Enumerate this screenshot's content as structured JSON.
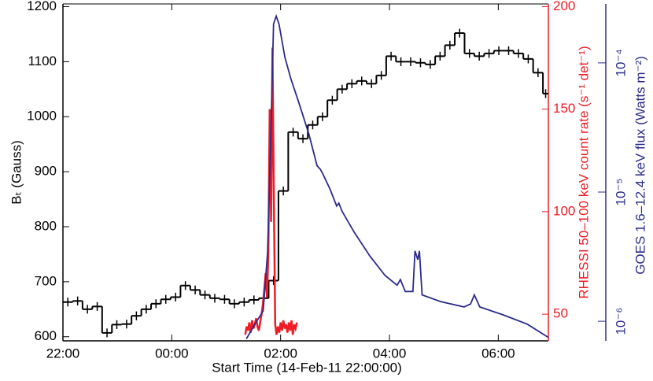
{
  "chart_data": {
    "type": "line",
    "xlabel": "Start Time (14-Feb-11 22:00:00)",
    "ylabel": "Bₜ (Gauss)",
    "y2label": "RHESSI 50–100 keV count rate (s⁻¹ det⁻¹)",
    "y3label": "GOES 1.6–12.4 keV flux (Watts m⁻²)",
    "xlim": [
      0,
      8.92
    ],
    "xticks": [
      {
        "value": 0,
        "label": "22:00"
      },
      {
        "value": 2,
        "label": "00:00"
      },
      {
        "value": 4,
        "label": "02:00"
      },
      {
        "value": 6,
        "label": "04:00"
      },
      {
        "value": 8,
        "label": "06:00"
      }
    ],
    "ylim": [
      592.5,
      1205
    ],
    "yticks": [
      600,
      700,
      800,
      900,
      1000,
      1100,
      1200
    ],
    "y2lim": [
      37,
      201.3
    ],
    "y2ticks": [
      50,
      100,
      150,
      200
    ],
    "y3lim": [
      7.05e-07,
      0.000286
    ],
    "y3log": true,
    "y3ticks": [
      {
        "value": 1e-06,
        "label": "10⁻⁶"
      },
      {
        "value": 1e-05,
        "label": "10⁻⁵"
      },
      {
        "value": 0.0001,
        "label": "10⁻⁴"
      }
    ],
    "series": [
      {
        "color": "#000000",
        "style": "step",
        "x": [
          0,
          0.18,
          0.36,
          0.54,
          0.72,
          0.9,
          1.08,
          1.26,
          1.44,
          1.62,
          1.8,
          1.98,
          2.16,
          2.34,
          2.52,
          2.7,
          2.88,
          3.06,
          3.24,
          3.42,
          3.6,
          3.78,
          3.96,
          4.14,
          4.32,
          4.5,
          4.68,
          4.86,
          5.04,
          5.22,
          5.4,
          5.58,
          5.76,
          5.94,
          6.12,
          6.3,
          6.48,
          6.66,
          6.84,
          7.02,
          7.2,
          7.38,
          7.56,
          7.74,
          7.92,
          8.1,
          8.28,
          8.46,
          8.64,
          8.82
        ],
        "values": [
          663,
          665,
          650,
          655,
          607,
          622,
          623,
          638,
          650,
          660,
          668,
          672,
          693,
          685,
          676,
          670,
          668,
          660,
          663,
          667,
          670,
          702,
          865,
          972,
          960,
          985,
          1000,
          1030,
          1050,
          1060,
          1065,
          1060,
          1075,
          1110,
          1100,
          1100,
          1098,
          1095,
          1110,
          1130,
          1152,
          1115,
          1110,
          1115,
          1120,
          1120,
          1115,
          1105,
          1080,
          1042
        ],
        "errors": [
          8,
          8,
          8,
          8,
          8,
          8,
          8,
          8,
          8,
          8,
          8,
          8,
          8,
          8,
          8,
          8,
          8,
          8,
          8,
          8,
          8,
          8,
          8,
          8,
          8,
          8,
          8,
          8,
          8,
          8,
          8,
          8,
          8,
          8,
          8,
          8,
          8,
          8,
          8,
          8,
          8,
          8,
          8,
          8,
          8,
          8,
          8,
          8,
          8,
          8
        ]
      },
      {
        "color": "#ee1c25",
        "axis": "y2",
        "x": [
          3.35,
          3.375,
          3.4,
          3.425,
          3.45,
          3.475,
          3.5,
          3.525,
          3.55,
          3.575,
          3.6,
          3.625,
          3.65,
          3.675,
          3.7,
          3.725,
          3.75,
          3.775,
          3.8,
          3.825,
          3.85,
          3.875,
          3.9,
          3.925,
          3.95,
          3.975,
          4.0,
          4.025,
          4.05,
          4.075,
          4.1,
          4.125,
          4.15,
          4.175,
          4.2,
          4.225,
          4.25,
          4.275,
          4.3
        ],
        "values": [
          40,
          44,
          42,
          46,
          41,
          47,
          43,
          45,
          48,
          44,
          42,
          46,
          50,
          55,
          62,
          70,
          58,
          80,
          150,
          95,
          180,
          110,
          45,
          40,
          44,
          41,
          46,
          42,
          47,
          43,
          45,
          41,
          46,
          42,
          47,
          40,
          45,
          43,
          46
        ]
      },
      {
        "color": "#2b2b8c",
        "axis": "y3",
        "x": [
          3.37,
          3.54,
          3.68,
          3.76,
          3.82,
          3.87,
          3.92,
          3.97,
          4.08,
          4.19,
          4.33,
          4.52,
          4.67,
          4.73,
          4.77,
          4.91,
          5.03,
          5.07,
          5.13,
          5.35,
          5.64,
          5.92,
          6.14,
          6.2,
          6.29,
          6.43,
          6.47,
          6.52,
          6.55,
          6.6,
          6.94,
          7.37,
          7.49,
          7.56,
          7.66,
          8.09,
          8.53,
          8.92
        ],
        "values": [
          7.3e-07,
          9.7e-07,
          1.2e-06,
          3.4e-06,
          2.7e-05,
          0.0002,
          0.00023,
          0.0002,
          0.00011,
          7.5e-05,
          5e-05,
          2.8e-05,
          1.6e-05,
          1.5e-05,
          1.4e-05,
          1.05e-05,
          7.8e-06,
          8.2e-06,
          7.1e-06,
          4.9e-06,
          3.2e-06,
          2.26e-06,
          1.9e-06,
          2.1e-06,
          1.7e-06,
          1.7e-06,
          3.5e-06,
          3e-06,
          3.5e-06,
          1.6e-06,
          1.42e-06,
          1.29e-06,
          1.36e-06,
          1.6e-06,
          1.29e-06,
          1.12e-06,
          9.5e-07,
          7.5e-07
        ]
      }
    ]
  }
}
